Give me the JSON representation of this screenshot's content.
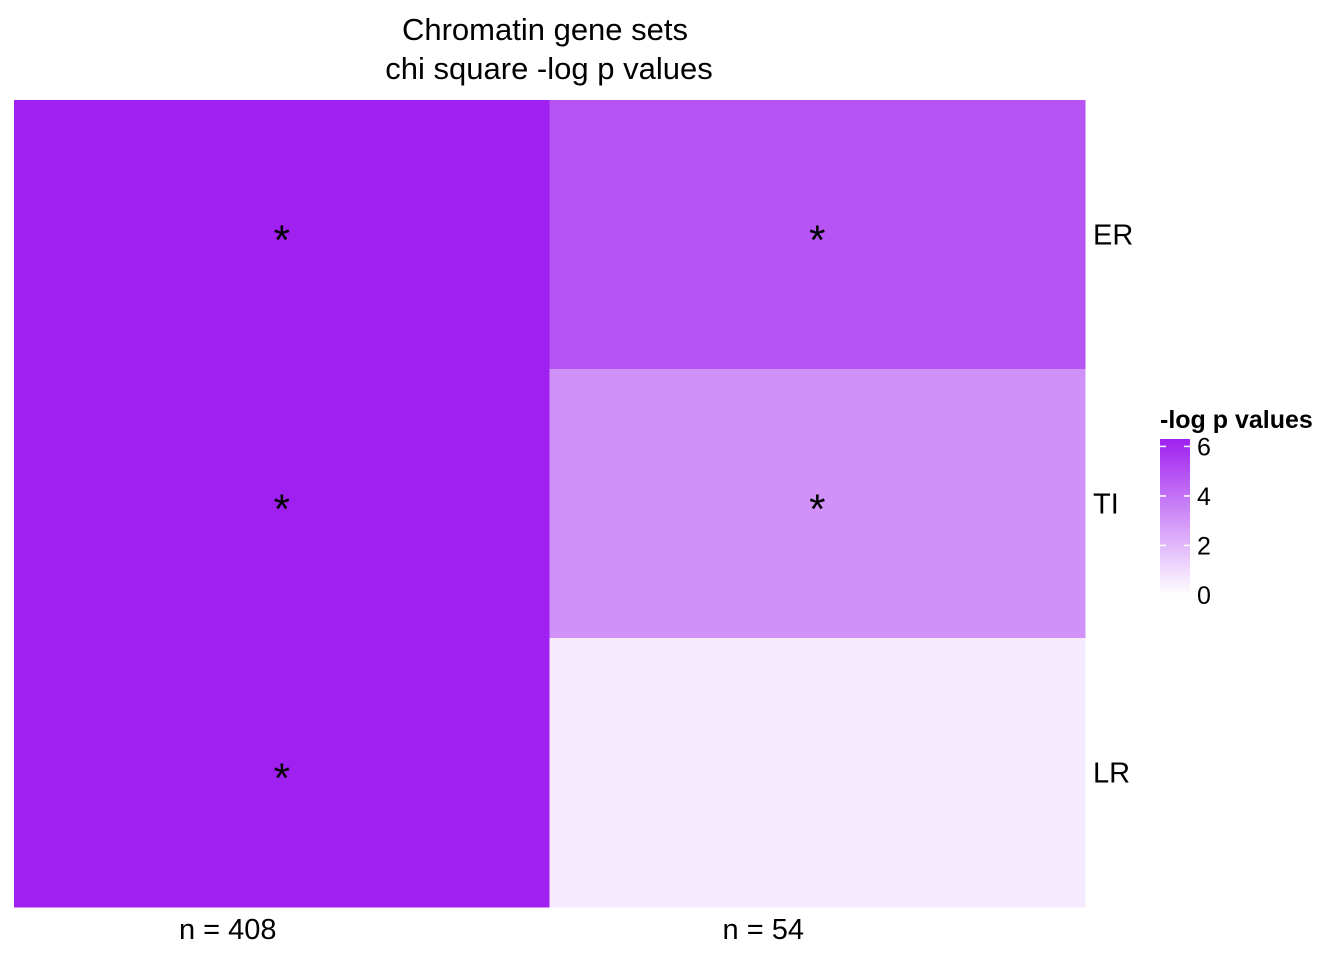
{
  "chart_data": {
    "type": "heatmap",
    "title": "Chromatin gene sets",
    "subtitle": "chi square -log p values",
    "columns": [
      "n = 408",
      "n = 54"
    ],
    "rows": [
      "ER",
      "TI",
      "LR"
    ],
    "values": [
      [
        6.3,
        4.8
      ],
      [
        6.3,
        3.1
      ],
      [
        6.3,
        0.6
      ]
    ],
    "significance": [
      [
        "*",
        "*"
      ],
      [
        "*",
        "*"
      ],
      [
        "*",
        ""
      ]
    ],
    "color_scale": {
      "low": "#ffffff",
      "high": "#a020f0",
      "range": [
        0,
        6.3
      ]
    },
    "legend": {
      "title": "-log p values",
      "ticks": [
        0,
        2,
        4,
        6
      ],
      "placement": "right"
    }
  }
}
